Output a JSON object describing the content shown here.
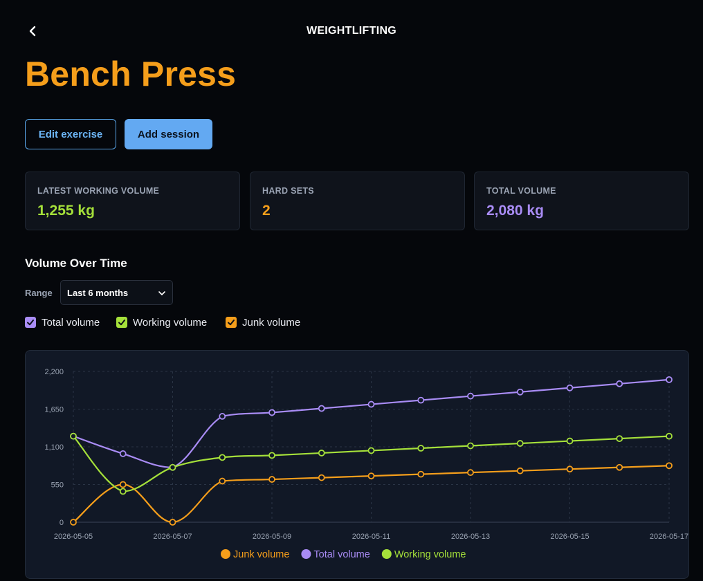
{
  "header": {
    "title": "WEIGHTLIFTING",
    "back_icon": "chevron-left-icon"
  },
  "page": {
    "title": "Bench Press"
  },
  "actions": {
    "edit_label": "Edit exercise",
    "add_label": "Add session"
  },
  "stats": [
    {
      "label": "LATEST WORKING VOLUME",
      "value": "1,255 kg",
      "color": "#a5e03a"
    },
    {
      "label": "HARD SETS",
      "value": "2",
      "color": "#f59e1b"
    },
    {
      "label": "TOTAL VOLUME",
      "value": "2,080 kg",
      "color": "#a98cf5"
    }
  ],
  "chart_section": {
    "title": "Volume Over Time",
    "range_label": "Range",
    "range_value": "Last 6 months",
    "toggles": [
      {
        "label": "Total volume",
        "checked": true,
        "color": "#a98cf5"
      },
      {
        "label": "Working volume",
        "checked": true,
        "color": "#a5e03a"
      },
      {
        "label": "Junk volume",
        "checked": true,
        "color": "#f59e1b"
      }
    ]
  },
  "chart_data": {
    "type": "line",
    "x": [
      "2026-05-05",
      "2026-05-06",
      "2026-05-07",
      "2026-05-08",
      "2026-05-09",
      "2026-05-10",
      "2026-05-11",
      "2026-05-12",
      "2026-05-13",
      "2026-05-14",
      "2026-05-15",
      "2026-05-16",
      "2026-05-17"
    ],
    "x_tick_labels": [
      "2026-05-05",
      "2026-05-07",
      "2026-05-09",
      "2026-05-11",
      "2026-05-13",
      "2026-05-15",
      "2026-05-17"
    ],
    "y_ticks": [
      "0",
      "550",
      "1,100",
      "1,650",
      "2,200"
    ],
    "ylim": [
      0,
      2200
    ],
    "grid": true,
    "legend_position": "bottom",
    "series": [
      {
        "name": "Junk volume",
        "color": "#f59e1b",
        "values": [
          0,
          550,
          0,
          600,
          625,
          650,
          675,
          700,
          725,
          750,
          775,
          800,
          825
        ]
      },
      {
        "name": "Total volume",
        "color": "#a98cf5",
        "values": [
          1255,
          1000,
          800,
          1545,
          1600,
          1660,
          1720,
          1780,
          1840,
          1900,
          1960,
          2020,
          2080
        ]
      },
      {
        "name": "Working volume",
        "color": "#a5e03a",
        "values": [
          1255,
          450,
          800,
          945,
          975,
          1010,
          1045,
          1080,
          1115,
          1150,
          1185,
          1220,
          1255
        ]
      }
    ]
  }
}
